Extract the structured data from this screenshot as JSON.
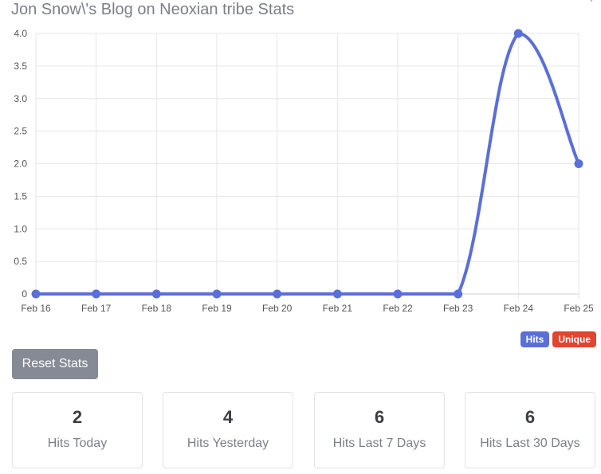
{
  "header": {
    "title": "Jon Snow\\'s Blog on Neoxian tribe Stats"
  },
  "chart_data": {
    "type": "line",
    "categories": [
      "Feb 16",
      "Feb 17",
      "Feb 18",
      "Feb 19",
      "Feb 20",
      "Feb 21",
      "Feb 22",
      "Feb 23",
      "Feb 24",
      "Feb 25"
    ],
    "series": [
      {
        "name": "Hits",
        "values": [
          0,
          0,
          0,
          0,
          0,
          0,
          0,
          0,
          4,
          2
        ],
        "color": "#5a6fd8"
      }
    ],
    "y_ticks": [
      "0",
      "0.5",
      "1.0",
      "1.5",
      "2.0",
      "2.5",
      "3.0",
      "3.5",
      "4.0"
    ],
    "ylim": [
      0,
      4
    ],
    "grid": true,
    "smooth": true
  },
  "legend": {
    "hits_label": "Hits",
    "hits_color": "#5a6fd8",
    "unique_label": "Unique",
    "unique_color": "#e0452f"
  },
  "actions": {
    "reset_label": "Reset Stats"
  },
  "stats": [
    {
      "value": "2",
      "label": "Hits Today"
    },
    {
      "value": "4",
      "label": "Hits Yesterday"
    },
    {
      "value": "6",
      "label": "Hits Last 7 Days"
    },
    {
      "value": "6",
      "label": "Hits Last 30 Days"
    }
  ]
}
